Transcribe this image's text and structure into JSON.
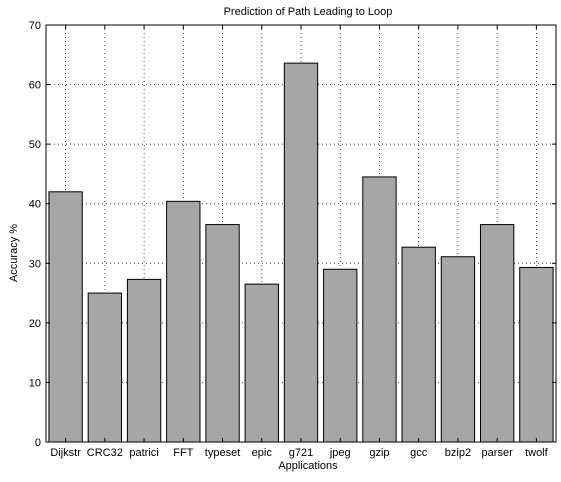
{
  "chart_data": {
    "type": "bar",
    "title": "Prediction of Path Leading to Loop",
    "xlabel": "Applications",
    "ylabel": "Accuracy %",
    "categories": [
      "Dijkstr",
      "CRC32",
      "patrici",
      "FFT",
      "typeset",
      "epic",
      "g721",
      "jpeg",
      "gzip",
      "gcc",
      "bzip2",
      "parser",
      "twolf"
    ],
    "values": [
      42.0,
      25.0,
      27.3,
      40.4,
      36.5,
      26.5,
      63.6,
      29.0,
      44.5,
      32.7,
      31.1,
      36.5,
      29.3
    ],
    "ylim": [
      0,
      70
    ],
    "yticks": [
      0,
      10,
      20,
      30,
      40,
      50,
      60,
      70
    ],
    "grid": true,
    "bar_color": "#a6a6a6",
    "edge_color": "#000000"
  }
}
